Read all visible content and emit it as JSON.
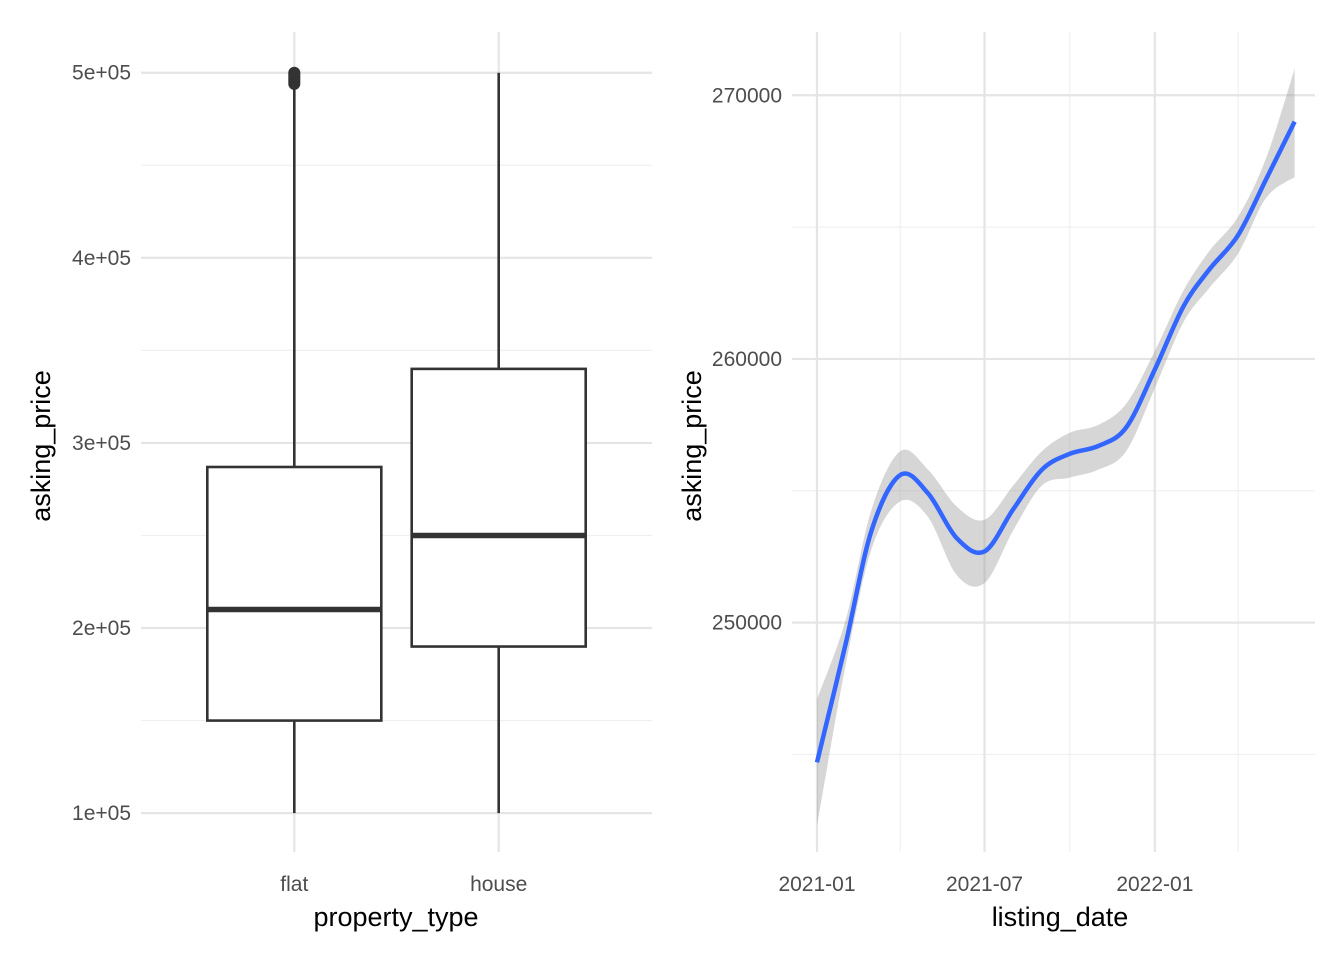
{
  "chart_data": [
    {
      "type": "box",
      "xlabel": "property_type",
      "ylabel": "asking_price",
      "categories": [
        "flat",
        "house"
      ],
      "boxes": [
        {
          "category": "flat",
          "whisker_low": 100000,
          "q1": 150000,
          "median": 210000,
          "q3": 287000,
          "whisker_high": 493000,
          "outliers": [
            494000,
            495000,
            496000,
            497000,
            498000,
            499000,
            500000
          ]
        },
        {
          "category": "house",
          "whisker_low": 100000,
          "q1": 190000,
          "median": 250000,
          "q3": 340000,
          "whisker_high": 500000,
          "outliers": []
        }
      ],
      "ylim": [
        79000,
        522000
      ],
      "y_ticks": [
        100000,
        200000,
        300000,
        400000,
        500000
      ],
      "y_tick_labels": [
        "1e+05",
        "2e+05",
        "3e+05",
        "4e+05",
        "5e+05"
      ],
      "y_minor_ticks": [
        150000,
        250000,
        350000,
        450000
      ],
      "grid": true,
      "box_color": "#333333"
    },
    {
      "type": "line",
      "subtype": "smooth with confidence band",
      "xlabel": "listing_date",
      "ylabel": "asking_price",
      "x": [
        "2021-01-01",
        "2021-02-01",
        "2021-03-01",
        "2021-04-01",
        "2021-05-01",
        "2021-06-01",
        "2021-07-01",
        "2021-08-01",
        "2021-09-01",
        "2021-10-01",
        "2021-11-01",
        "2021-12-01",
        "2022-01-01",
        "2022-02-01",
        "2022-03-01",
        "2022-04-01",
        "2022-05-01",
        "2022-06-01"
      ],
      "y": [
        244700,
        249200,
        253500,
        255600,
        254900,
        253200,
        252700,
        254300,
        255800,
        256400,
        256700,
        257400,
        259600,
        262000,
        263400,
        264700,
        266800,
        269000
      ],
      "ci_low": [
        242300,
        248400,
        252800,
        254600,
        254000,
        251800,
        251500,
        253500,
        255200,
        255500,
        255800,
        256500,
        258900,
        261400,
        262700,
        264000,
        266100,
        266900
      ],
      "ci_high": [
        247100,
        250100,
        254300,
        256500,
        255800,
        254400,
        253900,
        255200,
        256500,
        257200,
        257500,
        258300,
        260300,
        262600,
        264100,
        265400,
        267600,
        271000
      ],
      "xlim": [
        "2020-12-05",
        "2022-06-23"
      ],
      "ylim": [
        241300,
        272400
      ],
      "x_ticks": [
        "2021-01-01",
        "2021-07-01",
        "2022-01-01"
      ],
      "x_tick_labels": [
        "2021-01",
        "2021-07",
        "2022-01"
      ],
      "x_minor_ticks": [
        "2021-04-01",
        "2021-10-01",
        "2022-04-01"
      ],
      "y_ticks": [
        250000,
        260000,
        270000
      ],
      "y_tick_labels": [
        "250000",
        "260000",
        "270000"
      ],
      "y_minor_ticks": [
        245000,
        255000,
        265000
      ],
      "grid": true,
      "line_color": "#3366ff",
      "band_color": "#999999"
    }
  ]
}
